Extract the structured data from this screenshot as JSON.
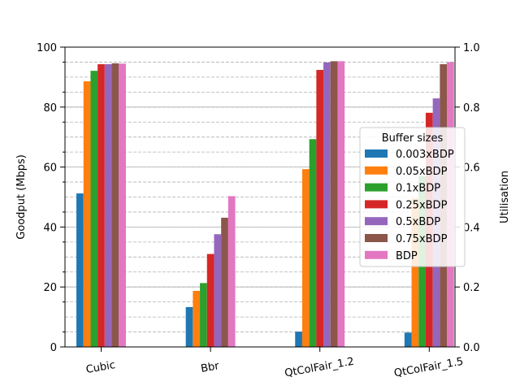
{
  "chart_data": {
    "type": "bar",
    "categories": [
      "Cubic",
      "Bbr",
      "QtColFair_1.2",
      "QtColFair_1.5"
    ],
    "series": [
      {
        "name": "0.003xBDP",
        "color": "#1f77b4",
        "values": [
          51.2,
          13.3,
          5.1,
          4.8
        ]
      },
      {
        "name": "0.05xBDP",
        "color": "#ff7f0e",
        "values": [
          88.6,
          18.7,
          59.3,
          49.5
        ]
      },
      {
        "name": "0.1xBDP",
        "color": "#2ca02c",
        "values": [
          92.1,
          21.3,
          69.3,
          57.0
        ]
      },
      {
        "name": "0.25xBDP",
        "color": "#d62728",
        "values": [
          94.3,
          31.0,
          92.4,
          78.1
        ]
      },
      {
        "name": "0.5xBDP",
        "color": "#9467bd",
        "values": [
          94.3,
          37.6,
          94.9,
          82.9
        ]
      },
      {
        "name": "0.75xBDP",
        "color": "#8c564b",
        "values": [
          94.6,
          43.1,
          95.3,
          94.3
        ]
      },
      {
        "name": "BDP",
        "color": "#e377c2",
        "values": [
          94.5,
          50.3,
          95.3,
          95.0
        ]
      }
    ],
    "ylabel": "Goodput (Mbps)",
    "y2label": "Utilisation",
    "ylim": [
      0,
      100
    ],
    "y2lim": [
      0,
      1.0
    ],
    "yticks": [
      "0",
      "20",
      "40",
      "60",
      "80",
      "100"
    ],
    "y2ticks": [
      "0.0",
      "0.2",
      "0.4",
      "0.6",
      "0.8",
      "1.0"
    ],
    "legend": {
      "title": "Buffer sizes",
      "position": "right"
    },
    "grid": true
  }
}
